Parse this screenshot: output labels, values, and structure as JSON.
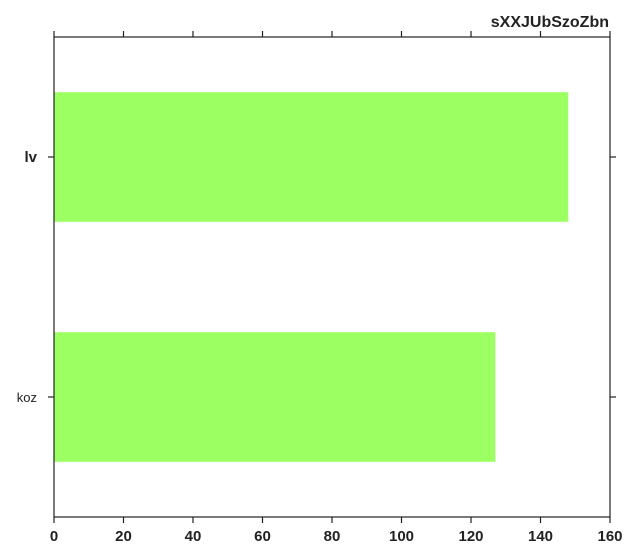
{
  "chart_data": {
    "type": "bar",
    "orientation": "horizontal",
    "title": "sXXJUbSzoZbn",
    "title_position": "top-right",
    "categories": [
      "lv",
      "koz"
    ],
    "values": [
      148,
      127
    ],
    "bar_color": "#9cff62",
    "xlim": [
      0,
      160
    ],
    "xticks": [
      0,
      20,
      40,
      60,
      80,
      100,
      120,
      140,
      160
    ],
    "xlabel": "",
    "ylabel": "",
    "grid": false,
    "legend": "none"
  }
}
